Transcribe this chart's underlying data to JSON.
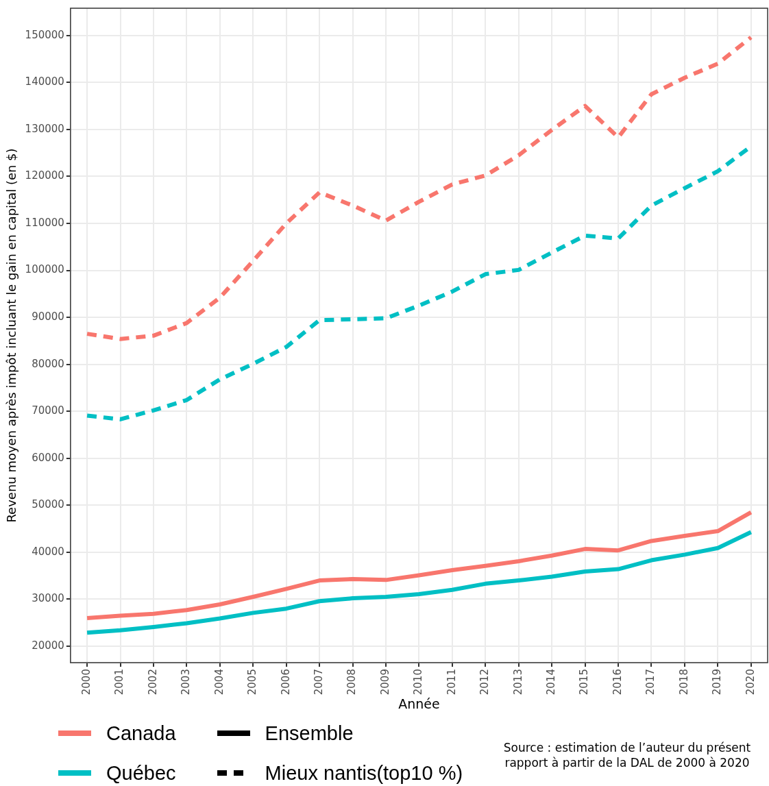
{
  "chart_data": {
    "type": "line",
    "xlabel": "Année",
    "ylabel": "Revenu moyen après impôt incluant le gain en capital (en $)",
    "categories": [
      "2000",
      "2001",
      "2002",
      "2003",
      "2004",
      "2005",
      "2006",
      "2007",
      "2008",
      "2009",
      "2010",
      "2011",
      "2012",
      "2013",
      "2014",
      "2015",
      "2016",
      "2017",
      "2018",
      "2019",
      "2020"
    ],
    "series": [
      {
        "name": "Canada",
        "color": "#f8766d",
        "line_style": "solid",
        "values": [
          26000,
          26500,
          26900,
          27700,
          28900,
          30500,
          32200,
          34000,
          34300,
          34100,
          35100,
          36200,
          37100,
          38100,
          39300,
          40700,
          40400,
          42400,
          43500,
          44500,
          48500
        ]
      },
      {
        "name": "Québec",
        "color": "#00bfc4",
        "line_style": "solid",
        "values": [
          22900,
          23400,
          24100,
          24900,
          25900,
          27100,
          28000,
          29600,
          30200,
          30500,
          31100,
          32000,
          33300,
          34000,
          34800,
          35900,
          36400,
          38300,
          39500,
          40900,
          44300
        ]
      },
      {
        "color": "#f8766d",
        "line_style": "dashed",
        "values": [
          86500,
          85400,
          86100,
          88800,
          94200,
          102000,
          110000,
          116600,
          113800,
          110600,
          114600,
          118300,
          120200,
          124500,
          129900,
          135000,
          128300,
          137500,
          141000,
          144000,
          149600
        ]
      },
      {
        "color": "#00bfc4",
        "line_style": "dashed",
        "values": [
          69100,
          68300,
          70200,
          72400,
          76800,
          80100,
          83700,
          89400,
          89600,
          89800,
          92500,
          95500,
          99200,
          100100,
          103800,
          107400,
          106800,
          113800,
          117500,
          121100,
          126400
        ]
      }
    ],
    "ylim": [
      16500,
      155800
    ],
    "yticks": [
      20000,
      30000,
      40000,
      50000,
      60000,
      70000,
      80000,
      90000,
      100000,
      110000,
      120000,
      130000,
      140000,
      150000
    ],
    "grid": true,
    "legend": "bottom",
    "marker": "none",
    "annotations": [
      "Ensemble",
      "Mieux nantis(top10 %)",
      "Source : estimation de l’auteur du présent rapport à partir de la DAL de 2000 à 2020"
    ]
  }
}
